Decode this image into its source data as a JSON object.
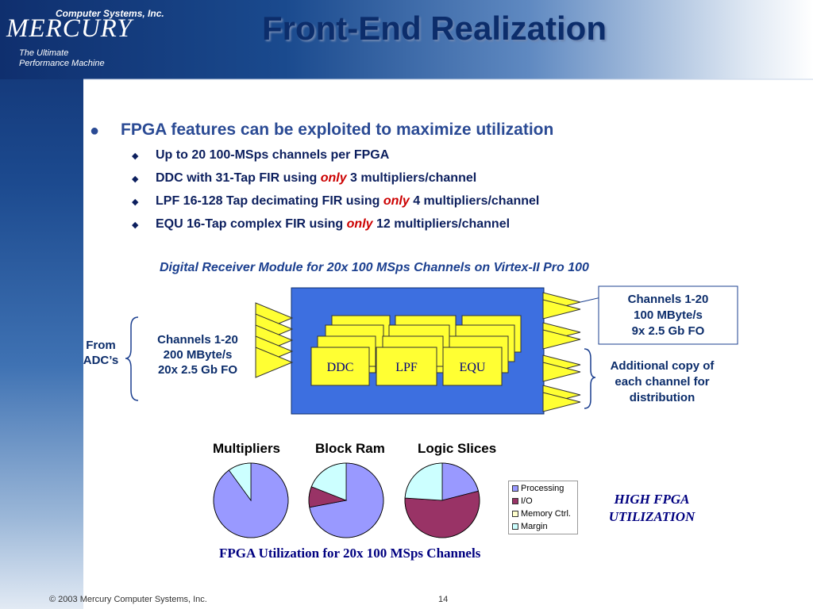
{
  "header": {
    "logo_company": "Computer Systems, Inc.",
    "logo_name": "MERCURY",
    "logo_tagline_1": "The Ultimate",
    "logo_tagline_2": "Performance Machine",
    "title": "Front-End Realization"
  },
  "bullets": {
    "main": "FPGA features can be exploited to maximize utilization",
    "sub": [
      {
        "pre": "Up to 20 100-MSps channels per FPGA",
        "em": "",
        "post": ""
      },
      {
        "pre": "DDC with 31-Tap FIR using ",
        "em": "only",
        "post": " 3 multipliers/channel"
      },
      {
        "pre": "LPF 16-128 Tap decimating FIR using ",
        "em": "only",
        "post": " 4 multipliers/channel"
      },
      {
        "pre": "EQU 16-Tap complex FIR using ",
        "em": "only",
        "post": " 12 multipliers/channel"
      }
    ]
  },
  "diagram": {
    "caption": "Digital Receiver Module for 20x 100 MSps Channels on Virtex-II Pro 100",
    "from_adc": [
      "From",
      "ADC’s"
    ],
    "input_channels": [
      "Channels 1-20",
      "200 MByte/s",
      "20x 2.5 Gb FO"
    ],
    "blocks": [
      "DDC",
      "LPF",
      "EQU"
    ],
    "output_channels": [
      "Channels 1-20",
      "100 MByte/s",
      "9x 2.5 Gb FO"
    ],
    "copy_note": [
      "Additional copy of",
      "each channel for",
      "distribution"
    ]
  },
  "utilization": {
    "titles": [
      "Multipliers",
      "Block Ram",
      "Logic Slices"
    ],
    "legend": [
      "Processing",
      "I/O",
      "Memory Ctrl.",
      "Margin"
    ],
    "colors": {
      "processing": "#9999ff",
      "io": "#993366",
      "memory": "#ffffcc",
      "margin": "#ccffff"
    },
    "side_note": [
      "HIGH FPGA",
      "UTILIZATION"
    ],
    "caption": "FPGA Utilization for 20x 100 MSps Channels"
  },
  "chart_data": [
    {
      "type": "pie",
      "title": "Multipliers",
      "labels": [
        "Processing",
        "I/O",
        "Memory Ctrl.",
        "Margin"
      ],
      "values": [
        90,
        0,
        0,
        10
      ]
    },
    {
      "type": "pie",
      "title": "Block Ram",
      "labels": [
        "Processing",
        "I/O",
        "Memory Ctrl.",
        "Margin"
      ],
      "values": [
        72,
        9,
        0,
        19
      ]
    },
    {
      "type": "pie",
      "title": "Logic Slices",
      "labels": [
        "Processing",
        "I/O",
        "Memory Ctrl.",
        "Margin"
      ],
      "values": [
        21,
        55,
        0,
        24
      ]
    }
  ],
  "footer": {
    "copyright": "© 2003 Mercury Computer Systems, Inc.",
    "page": "14"
  }
}
